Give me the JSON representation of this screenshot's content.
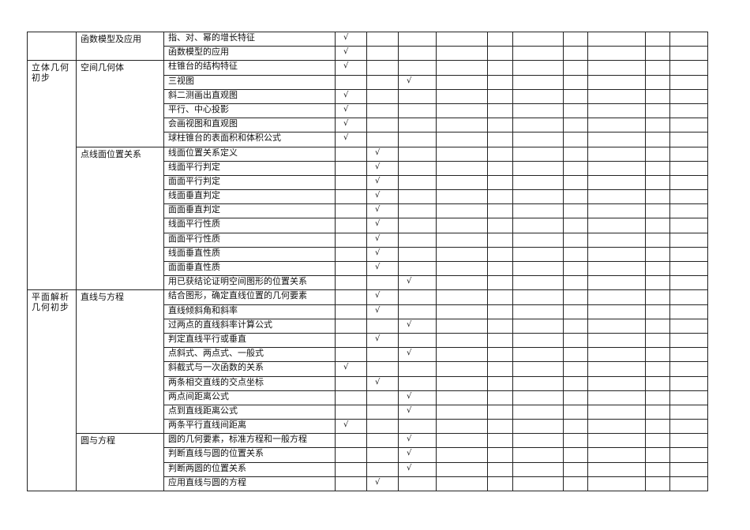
{
  "columns_count": 14,
  "check_symbol": "√",
  "groups": [
    {
      "chapter": "",
      "sections": [
        {
          "name": "函数模型及应用",
          "topics": [
            {
              "t": "指、对、幂的增长特征",
              "c": 0
            },
            {
              "t": "函数模型的应用",
              "c": 0
            }
          ]
        }
      ]
    },
    {
      "chapter": "立体几何初步",
      "sections": [
        {
          "name": "空间几何体",
          "topics": [
            {
              "t": "柱锥台的结构特征",
              "c": 0
            },
            {
              "t": "三视图",
              "c": 2
            },
            {
              "t": "斜二测画出直观图",
              "c": 0
            },
            {
              "t": "平行、中心投影",
              "c": 0
            },
            {
              "t": "会画视图和直观图",
              "c": 0
            },
            {
              "t": "球柱锥台的表面积和体积公式",
              "c": 0
            }
          ]
        },
        {
          "name": "点线面位置关系",
          "topics": [
            {
              "t": "线面位置关系定义",
              "c": 1
            },
            {
              "t": "线面平行判定",
              "c": 1
            },
            {
              "t": "面面平行判定",
              "c": 1
            },
            {
              "t": "线面垂直判定",
              "c": 1
            },
            {
              "t": "面面垂直判定",
              "c": 1
            },
            {
              "t": "线面平行性质",
              "c": 1
            },
            {
              "t": "面面平行性质",
              "c": 1
            },
            {
              "t": "线面垂直性质",
              "c": 1
            },
            {
              "t": "面面垂直性质",
              "c": 1
            },
            {
              "t": "用已获结论证明空间图形的位置关系",
              "c": 2
            }
          ]
        }
      ]
    },
    {
      "chapter": "平面解析几何初步",
      "sections": [
        {
          "name": "直线与方程",
          "topics": [
            {
              "t": "结合图形，确定直线位置的几何要素",
              "c": 1
            },
            {
              "t": "直线倾斜角和斜率",
              "c": 1
            },
            {
              "t": "过两点的直线斜率计算公式",
              "c": 2
            },
            {
              "t": "判定直线平行或垂直",
              "c": 1
            },
            {
              "t": "点斜式、两点式、一般式",
              "c": 2
            },
            {
              "t": "斜截式与一次函数的关系",
              "c": 0
            },
            {
              "t": "两条相交直线的交点坐标",
              "c": 1
            },
            {
              "t": "两点间距离公式",
              "c": 2
            },
            {
              "t": "点到直线距离公式",
              "c": 2
            },
            {
              "t": "两条平行直线间距离",
              "c": 0
            }
          ]
        },
        {
          "name": "圆与方程",
          "topics": [
            {
              "t": "圆的几何要素，标准方程和一般方程",
              "c": 2
            },
            {
              "t": "判断直线与圆的位置关系",
              "c": 2
            },
            {
              "t": "判断两圆的位置关系",
              "c": 2
            },
            {
              "t": "应用直线与圆的方程",
              "c": 1
            }
          ]
        }
      ]
    }
  ]
}
